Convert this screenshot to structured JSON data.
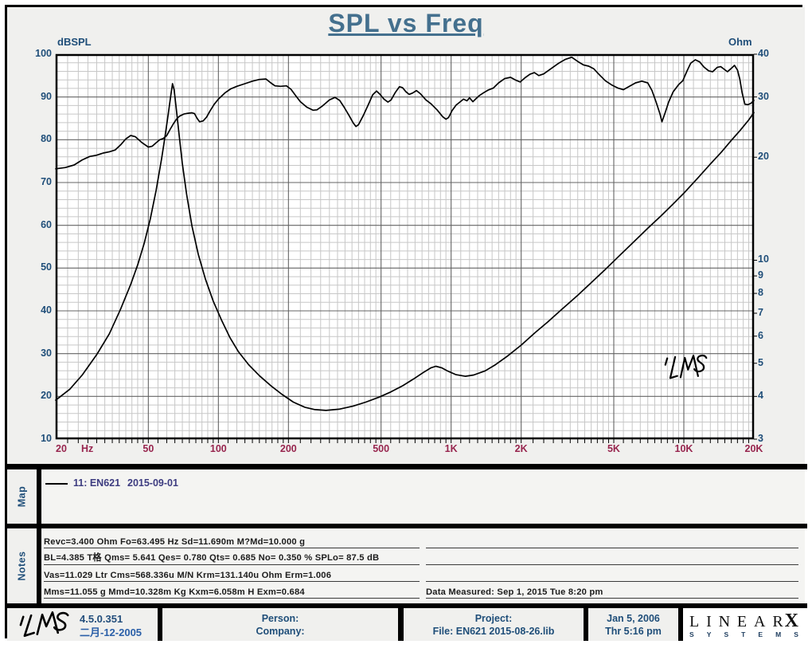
{
  "header": {
    "title": "SPL vs Freq"
  },
  "colors": {
    "title_blue": "#44708E",
    "axis_blue": "#1F4E79",
    "freq_maroon": "#97254E",
    "legend_purple": "#3D3C80",
    "grid_minor": "#c7c7c7",
    "grid_major": "#646464",
    "curve": "#000000",
    "section_bg": "#f0f0ee",
    "plot_bg": "#ffffff"
  },
  "chart_data": {
    "type": "line",
    "title": "SPL vs Freq",
    "x_axis": {
      "scale": "log",
      "min": 20,
      "max": 20000,
      "unit_label": "Hz",
      "ticks": [
        {
          "label": "20",
          "f": 20
        },
        {
          "label": "50",
          "f": 50
        },
        {
          "label": "100",
          "f": 100
        },
        {
          "label": "200",
          "f": 200
        },
        {
          "label": "500",
          "f": 500
        },
        {
          "label": "1K",
          "f": 1000
        },
        {
          "label": "2K",
          "f": 2000
        },
        {
          "label": "5K",
          "f": 5000
        },
        {
          "label": "10K",
          "f": 10000
        },
        {
          "label": "20K",
          "f": 20000
        }
      ]
    },
    "y_left": {
      "label": "dBSPL",
      "scale": "linear",
      "min": 10,
      "max": 100,
      "ticks": [
        100,
        90,
        80,
        70,
        60,
        50,
        40,
        30,
        20,
        10
      ]
    },
    "y_right": {
      "label": "Ohm",
      "scale": "log",
      "min": 3,
      "max": 40,
      "ticks": [
        40,
        30,
        20,
        10,
        9,
        8,
        7,
        6,
        5,
        4,
        3
      ]
    },
    "grid": {
      "h_minor_step_db": 2,
      "v_minor": "log-subdivisions",
      "grid_on": true
    },
    "series": [
      {
        "name": "SPL",
        "axis": "left",
        "units": "dBSPL",
        "points": [
          [
            20,
            73.2
          ],
          [
            22,
            73.5
          ],
          [
            24,
            74.1
          ],
          [
            26,
            75.3
          ],
          [
            28,
            76.1
          ],
          [
            30,
            76.4
          ],
          [
            32,
            76.9
          ],
          [
            34,
            77.2
          ],
          [
            36,
            77.6
          ],
          [
            38,
            78.8
          ],
          [
            40,
            80.2
          ],
          [
            42,
            81.0
          ],
          [
            44,
            80.7
          ],
          [
            47,
            79.3
          ],
          [
            50,
            78.3
          ],
          [
            52,
            78.5
          ],
          [
            54,
            79.3
          ],
          [
            56,
            80.0
          ],
          [
            58,
            80.3
          ],
          [
            60,
            81.0
          ],
          [
            62,
            82.4
          ],
          [
            64,
            83.7
          ],
          [
            66,
            84.8
          ],
          [
            68,
            85.5
          ],
          [
            71,
            86.0
          ],
          [
            74,
            86.2
          ],
          [
            77,
            86.3
          ],
          [
            79,
            86.1
          ],
          [
            81,
            85.0
          ],
          [
            83,
            84.2
          ],
          [
            86,
            84.4
          ],
          [
            89,
            85.3
          ],
          [
            92,
            86.7
          ],
          [
            96,
            88.3
          ],
          [
            100,
            89.5
          ],
          [
            107,
            91.0
          ],
          [
            113,
            91.9
          ],
          [
            120,
            92.5
          ],
          [
            130,
            93.1
          ],
          [
            140,
            93.7
          ],
          [
            150,
            94.1
          ],
          [
            160,
            94.2
          ],
          [
            168,
            93.3
          ],
          [
            175,
            92.6
          ],
          [
            185,
            92.5
          ],
          [
            196,
            92.6
          ],
          [
            205,
            91.8
          ],
          [
            215,
            90.3
          ],
          [
            225,
            88.9
          ],
          [
            240,
            87.6
          ],
          [
            255,
            86.9
          ],
          [
            265,
            87.0
          ],
          [
            280,
            87.9
          ],
          [
            300,
            89.3
          ],
          [
            317,
            89.9
          ],
          [
            332,
            89.2
          ],
          [
            347,
            87.6
          ],
          [
            365,
            85.6
          ],
          [
            380,
            83.9
          ],
          [
            390,
            83.1
          ],
          [
            400,
            83.5
          ],
          [
            420,
            85.7
          ],
          [
            440,
            88.1
          ],
          [
            460,
            90.5
          ],
          [
            478,
            91.4
          ],
          [
            495,
            90.6
          ],
          [
            515,
            89.5
          ],
          [
            535,
            88.8
          ],
          [
            552,
            89.3
          ],
          [
            575,
            91.0
          ],
          [
            600,
            92.4
          ],
          [
            618,
            92.2
          ],
          [
            640,
            91.2
          ],
          [
            660,
            90.6
          ],
          [
            682,
            90.9
          ],
          [
            710,
            91.5
          ],
          [
            740,
            90.7
          ],
          [
            780,
            89.3
          ],
          [
            820,
            88.4
          ],
          [
            870,
            87.0
          ],
          [
            920,
            85.4
          ],
          [
            950,
            84.8
          ],
          [
            975,
            85.2
          ],
          [
            1010,
            86.8
          ],
          [
            1050,
            88.1
          ],
          [
            1090,
            88.8
          ],
          [
            1130,
            89.5
          ],
          [
            1170,
            89.1
          ],
          [
            1200,
            89.8
          ],
          [
            1240,
            88.9
          ],
          [
            1280,
            89.6
          ],
          [
            1320,
            90.3
          ],
          [
            1380,
            91.0
          ],
          [
            1440,
            91.6
          ],
          [
            1520,
            92.1
          ],
          [
            1600,
            93.3
          ],
          [
            1700,
            94.3
          ],
          [
            1800,
            94.6
          ],
          [
            1900,
            93.9
          ],
          [
            1980,
            93.5
          ],
          [
            2080,
            94.5
          ],
          [
            2180,
            95.3
          ],
          [
            2280,
            95.7
          ],
          [
            2380,
            95.0
          ],
          [
            2500,
            95.4
          ],
          [
            2700,
            96.7
          ],
          [
            2900,
            97.9
          ],
          [
            3100,
            98.8
          ],
          [
            3300,
            99.3
          ],
          [
            3500,
            98.3
          ],
          [
            3700,
            97.5
          ],
          [
            3900,
            97.2
          ],
          [
            4100,
            96.6
          ],
          [
            4300,
            95.4
          ],
          [
            4600,
            93.8
          ],
          [
            4900,
            92.8
          ],
          [
            5200,
            92.1
          ],
          [
            5500,
            91.7
          ],
          [
            5800,
            92.4
          ],
          [
            6200,
            93.3
          ],
          [
            6600,
            93.7
          ],
          [
            7000,
            93.3
          ],
          [
            7300,
            91.5
          ],
          [
            7600,
            88.8
          ],
          [
            7900,
            86.0
          ],
          [
            8050,
            84.2
          ],
          [
            8300,
            86.2
          ],
          [
            8600,
            88.8
          ],
          [
            9000,
            91.2
          ],
          [
            9500,
            92.9
          ],
          [
            9900,
            93.8
          ],
          [
            10300,
            96.0
          ],
          [
            10700,
            97.9
          ],
          [
            11200,
            98.7
          ],
          [
            11700,
            98.2
          ],
          [
            12200,
            97.0
          ],
          [
            12800,
            96.1
          ],
          [
            13300,
            95.9
          ],
          [
            13900,
            96.9
          ],
          [
            14400,
            97.1
          ],
          [
            14900,
            96.5
          ],
          [
            15400,
            95.9
          ],
          [
            16000,
            96.7
          ],
          [
            16500,
            97.4
          ],
          [
            17000,
            96.3
          ],
          [
            17400,
            94.2
          ],
          [
            17800,
            91.0
          ],
          [
            18300,
            88.3
          ],
          [
            18900,
            88.2
          ],
          [
            19500,
            88.6
          ],
          [
            20000,
            89.2
          ]
        ]
      },
      {
        "name": "Impedance",
        "axis": "right",
        "units": "Ohm",
        "points": [
          [
            20,
            3.9
          ],
          [
            23,
            4.2
          ],
          [
            26,
            4.62
          ],
          [
            30,
            5.3
          ],
          [
            34,
            6.1
          ],
          [
            38,
            7.2
          ],
          [
            42,
            8.5
          ],
          [
            45,
            9.7
          ],
          [
            48,
            11.2
          ],
          [
            51,
            13.2
          ],
          [
            54,
            16.0
          ],
          [
            57,
            19.8
          ],
          [
            59,
            23.0
          ],
          [
            61,
            27.0
          ],
          [
            62.5,
            30.5
          ],
          [
            63.5,
            32.8
          ],
          [
            64.5,
            31.5
          ],
          [
            66,
            27.5
          ],
          [
            68,
            22.8
          ],
          [
            70,
            19.2
          ],
          [
            73,
            15.6
          ],
          [
            77,
            12.6
          ],
          [
            82,
            10.4
          ],
          [
            88,
            8.8
          ],
          [
            95,
            7.6
          ],
          [
            103,
            6.7
          ],
          [
            112,
            5.95
          ],
          [
            122,
            5.4
          ],
          [
            135,
            4.95
          ],
          [
            150,
            4.6
          ],
          [
            168,
            4.3
          ],
          [
            188,
            4.05
          ],
          [
            210,
            3.85
          ],
          [
            235,
            3.72
          ],
          [
            260,
            3.66
          ],
          [
            290,
            3.64
          ],
          [
            330,
            3.67
          ],
          [
            380,
            3.75
          ],
          [
            430,
            3.85
          ],
          [
            490,
            3.98
          ],
          [
            550,
            4.12
          ],
          [
            620,
            4.3
          ],
          [
            690,
            4.5
          ],
          [
            760,
            4.7
          ],
          [
            820,
            4.85
          ],
          [
            860,
            4.9
          ],
          [
            910,
            4.85
          ],
          [
            970,
            4.74
          ],
          [
            1050,
            4.63
          ],
          [
            1150,
            4.58
          ],
          [
            1250,
            4.62
          ],
          [
            1400,
            4.75
          ],
          [
            1550,
            4.95
          ],
          [
            1750,
            5.25
          ],
          [
            2000,
            5.65
          ],
          [
            2300,
            6.15
          ],
          [
            2600,
            6.6
          ],
          [
            3000,
            7.2
          ],
          [
            3500,
            7.9
          ],
          [
            4000,
            8.6
          ],
          [
            4600,
            9.4
          ],
          [
            5200,
            10.2
          ],
          [
            6000,
            11.2
          ],
          [
            7000,
            12.4
          ],
          [
            8000,
            13.5
          ],
          [
            9000,
            14.6
          ],
          [
            10000,
            15.7
          ],
          [
            11500,
            17.4
          ],
          [
            13000,
            19.1
          ],
          [
            14500,
            20.7
          ],
          [
            16000,
            22.4
          ],
          [
            17500,
            24.0
          ],
          [
            19000,
            25.7
          ],
          [
            20000,
            27.0
          ]
        ]
      }
    ]
  },
  "map": {
    "tab": "Map",
    "legend": {
      "label": "11: EN621",
      "date": "2015-09-01"
    }
  },
  "notes": {
    "tab": "Notes",
    "left_lines": [
      "Revc=3.400 Ohm  Fo=63.495 Hz  Sd=11.690m M?Md=10.000 g",
      "BL=4.385 T格  Qms= 5.641  Qes= 0.780  Qts= 0.685  No= 0.350 %  SPLo= 87.5 dB",
      "Vas=11.029 Ltr  Cms=568.336u M/N  Krm=131.140u Ohm  Erm=1.006",
      "Mms=11.055 g  Mmd=10.328m Kg  Kxm=6.058m H  Exm=0.684"
    ],
    "right_lines": [
      "",
      "",
      "",
      "Data Measured: Sep  1, 2015  Tue  8:20 pm"
    ]
  },
  "footer": {
    "version": "4.5.0.351",
    "version_date": "二月-12-2005",
    "person_label": "Person:",
    "company_label": "Company:",
    "project_label": "Project:",
    "file_label": "File: EN621  2015-08-26.lib",
    "date": "Jan  5, 2006",
    "time": "Thr  5:16 pm",
    "brand": {
      "name": "LINEAR",
      "x": "X",
      "sub": "SYSTEMS"
    }
  }
}
